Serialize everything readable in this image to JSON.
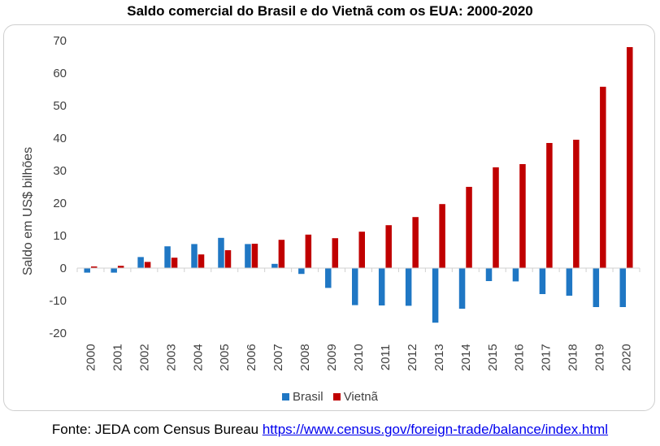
{
  "chart_data": {
    "type": "bar",
    "title": "Saldo comercial do Brasil e do Vietnã com os EUA: 2000-2020",
    "xlabel": "",
    "ylabel": "Saldo em US$ bilhões",
    "ylim": [
      -20,
      70
    ],
    "yticks": [
      -20,
      -10,
      0,
      10,
      20,
      30,
      40,
      50,
      60,
      70
    ],
    "grid": false,
    "legend_position": "bottom",
    "categories": [
      "2000",
      "2001",
      "2002",
      "2003",
      "2004",
      "2005",
      "2006",
      "2007",
      "2008",
      "2009",
      "2010",
      "2011",
      "2012",
      "2013",
      "2014",
      "2015",
      "2016",
      "2017",
      "2018",
      "2019",
      "2020"
    ],
    "series": [
      {
        "name": "Brasil",
        "color": "#1f77c4",
        "values": [
          -1.4,
          -1.4,
          3.4,
          6.7,
          7.4,
          9.3,
          7.4,
          1.3,
          -1.8,
          -6.1,
          -11.4,
          -11.5,
          -11.6,
          -16.8,
          -12.5,
          -4.0,
          -4.1,
          -8.0,
          -8.5,
          -12.0,
          -12.0
        ]
      },
      {
        "name": "Vietnã",
        "color": "#c00000",
        "values": [
          0.5,
          0.7,
          1.9,
          3.2,
          4.2,
          5.5,
          7.5,
          8.7,
          10.3,
          9.2,
          11.2,
          13.2,
          15.7,
          19.7,
          25.0,
          31.0,
          32.0,
          38.5,
          39.5,
          55.8,
          68.0
        ]
      }
    ]
  },
  "source": {
    "prefix": "Fonte: JEDA com Census Bureau ",
    "link_text": "https://www.census.gov/foreign-trade/balance/index.html"
  }
}
